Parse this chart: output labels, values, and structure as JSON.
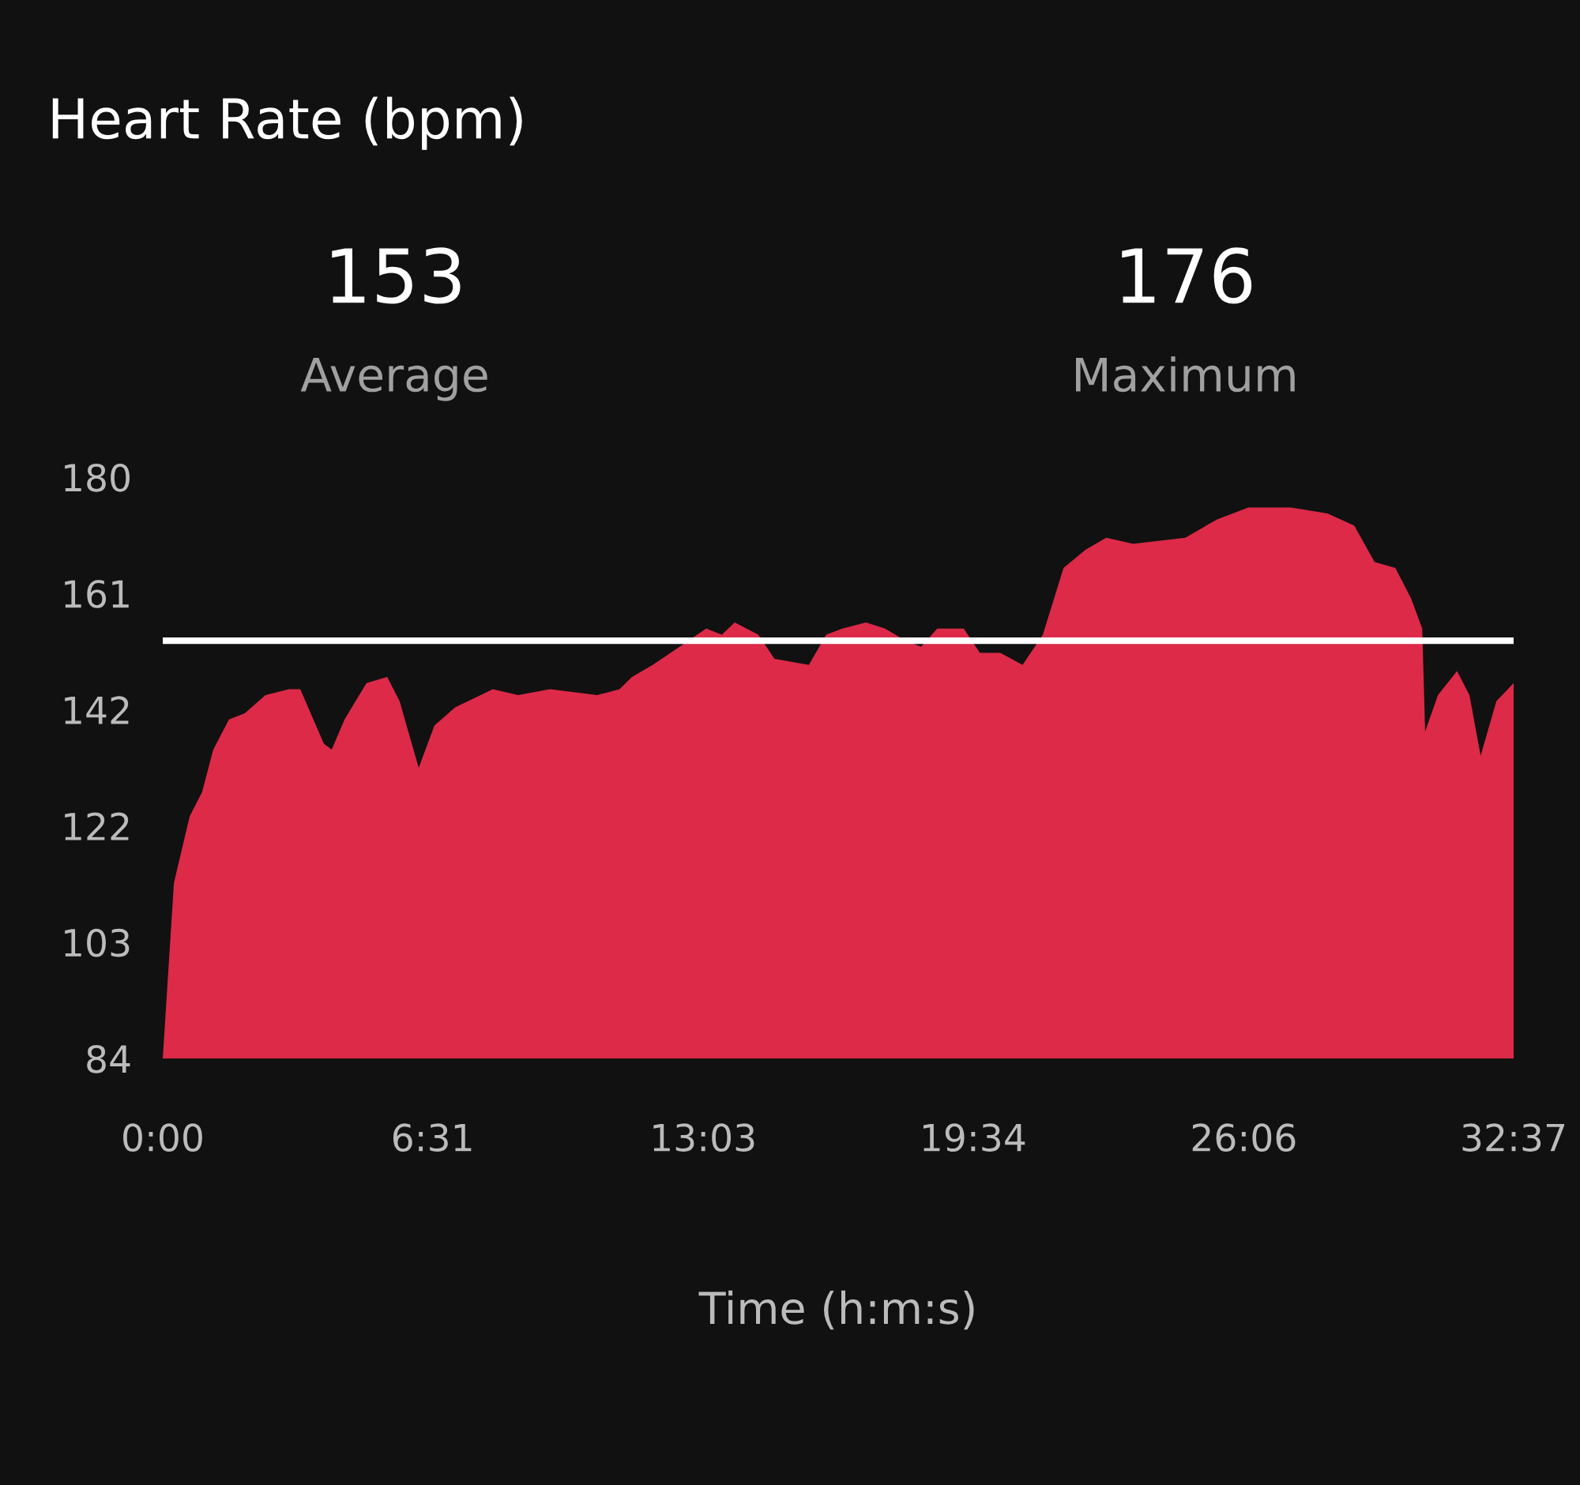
{
  "chart_data": {
    "type": "area",
    "title": "Heart Rate (bpm)",
    "xlabel": "Time (h:m:s)",
    "annotations": [
      "153",
      "Average",
      "176",
      "Maximum"
    ],
    "series": [
      {
        "color": "#dc2a48",
        "x": [
          0,
          0.27,
          0.65,
          0.95,
          1.22,
          1.6,
          1.98,
          2.48,
          3.05,
          3.32,
          3.89,
          4.08,
          4.39,
          4.92,
          5.42,
          5.72,
          6.18,
          6.56,
          7.06,
          7.97,
          8.58,
          9.35,
          10.49,
          11.03,
          11.33,
          11.83,
          12.48,
          13.12,
          13.5,
          13.81,
          14.38,
          14.77,
          15.6,
          16.02,
          16.41,
          16.98,
          17.44,
          17.93,
          18.31,
          18.7,
          19.34,
          19.73,
          20.22,
          20.76,
          21.25,
          21.75,
          22.28,
          22.78,
          23.43,
          24.69,
          25.45,
          26.21,
          27.24,
          28.12,
          28.77,
          29.26,
          29.76,
          30.14,
          30.41,
          30.48,
          30.79,
          31.25,
          31.55,
          31.82,
          32.2,
          32.617
        ],
        "values": [
          84,
          113,
          124,
          128,
          135,
          140,
          141,
          144,
          145,
          145,
          136,
          135,
          140,
          146,
          147,
          143,
          132,
          139,
          142,
          145,
          144,
          145,
          144,
          145,
          147,
          149,
          152,
          155,
          154,
          156,
          154,
          150,
          149,
          154,
          155,
          156,
          155,
          153,
          152,
          155,
          155,
          151,
          151,
          149,
          154,
          165,
          168,
          170,
          169,
          170,
          173,
          175,
          175,
          174,
          172,
          166,
          165,
          160,
          155,
          138,
          144,
          148,
          144,
          134,
          143,
          146
        ]
      }
    ],
    "xlim": [
      0,
      32.617
    ],
    "xticks": [
      {
        "value": 0,
        "label": "0:00"
      },
      {
        "value": 6.517,
        "label": "6:31"
      },
      {
        "value": 13.05,
        "label": "13:03"
      },
      {
        "value": 19.567,
        "label": "19:34"
      },
      {
        "value": 26.1,
        "label": "26:06"
      },
      {
        "value": 32.617,
        "label": "32:37"
      }
    ],
    "ylim": [
      84,
      180
    ],
    "yticks": [
      84,
      {
        "value": 103.2,
        "label": "103"
      },
      {
        "value": 122.4,
        "label": "122"
      },
      {
        "value": 141.6,
        "label": "142"
      },
      {
        "value": 160.8,
        "label": "161"
      },
      180
    ],
    "ref_lines": [
      {
        "axis": "y",
        "value": 153,
        "color": "#ffffff"
      }
    ],
    "grid": false,
    "legend": false
  }
}
